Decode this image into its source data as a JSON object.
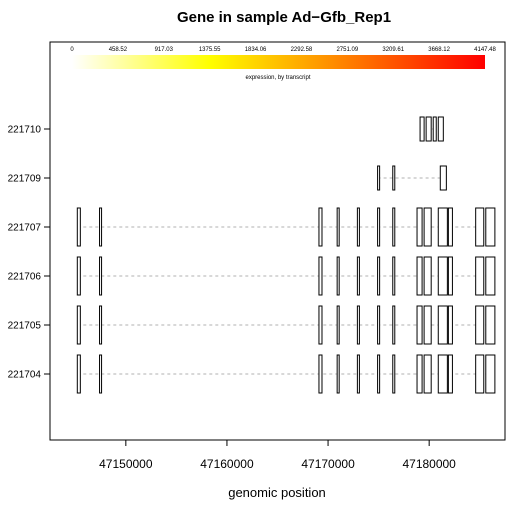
{
  "chart_data": {
    "type": "gene-structure",
    "title": "Gene in sample Ad−Gfb_Rep1",
    "xlabel": "genomic position",
    "xlim": [
      47142500,
      47187500
    ],
    "x_ticks": [
      47150000,
      47160000,
      47170000,
      47180000
    ],
    "x_tick_labels": [
      "47150000",
      "47160000",
      "47170000",
      "47180000"
    ],
    "legend": {
      "caption": "expression, by transcript",
      "min": 0,
      "max": 4147.48,
      "colors": [
        "#ffffff",
        "#ffff00",
        "#ff7f00",
        "#ff0000"
      ],
      "tick_labels": [
        "0",
        "458.52",
        "917.03",
        "1375.55",
        "1834.06",
        "2292.58",
        "2751.09",
        "3209.61",
        "3668.12",
        "4147.48"
      ]
    },
    "transcripts": [
      {
        "name": "221704",
        "start": 47145200,
        "end": 47186500,
        "exons": [
          [
            47145200,
            47145500
          ],
          [
            47147400,
            47147600
          ],
          [
            47169100,
            47169400
          ],
          [
            47170900,
            47171100
          ],
          [
            47172900,
            47173100
          ],
          [
            47174900,
            47175100
          ],
          [
            47176400,
            47176600
          ],
          [
            47178800,
            47179300
          ],
          [
            47179500,
            47180200
          ],
          [
            47180900,
            47181800
          ],
          [
            47181900,
            47182300
          ],
          [
            47184600,
            47185400
          ],
          [
            47185600,
            47186500
          ]
        ]
      },
      {
        "name": "221705",
        "start": 47145200,
        "end": 47186500,
        "exons": [
          [
            47145200,
            47145500
          ],
          [
            47147400,
            47147600
          ],
          [
            47169100,
            47169400
          ],
          [
            47170900,
            47171100
          ],
          [
            47172900,
            47173100
          ],
          [
            47174900,
            47175100
          ],
          [
            47176400,
            47176600
          ],
          [
            47178800,
            47179300
          ],
          [
            47179500,
            47180200
          ],
          [
            47180900,
            47181800
          ],
          [
            47181900,
            47182300
          ],
          [
            47184600,
            47185400
          ],
          [
            47185600,
            47186500
          ]
        ]
      },
      {
        "name": "221706",
        "start": 47145200,
        "end": 47186500,
        "exons": [
          [
            47145200,
            47145500
          ],
          [
            47147400,
            47147600
          ],
          [
            47169100,
            47169400
          ],
          [
            47170900,
            47171100
          ],
          [
            47172900,
            47173100
          ],
          [
            47174900,
            47175100
          ],
          [
            47176400,
            47176600
          ],
          [
            47178800,
            47179300
          ],
          [
            47179500,
            47180200
          ],
          [
            47180900,
            47181800
          ],
          [
            47181900,
            47182300
          ],
          [
            47184600,
            47185400
          ],
          [
            47185600,
            47186500
          ]
        ]
      },
      {
        "name": "221707",
        "start": 47145200,
        "end": 47186500,
        "exons": [
          [
            47145200,
            47145500
          ],
          [
            47147400,
            47147600
          ],
          [
            47169100,
            47169400
          ],
          [
            47170900,
            47171100
          ],
          [
            47172900,
            47173100
          ],
          [
            47174900,
            47175100
          ],
          [
            47176400,
            47176600
          ],
          [
            47178800,
            47179300
          ],
          [
            47179500,
            47180200
          ],
          [
            47180900,
            47181800
          ],
          [
            47181900,
            47182300
          ],
          [
            47184600,
            47185400
          ],
          [
            47185600,
            47186500
          ]
        ]
      },
      {
        "name": "221709",
        "start": 47174900,
        "end": 47181700,
        "exons": [
          [
            47174900,
            47175100
          ],
          [
            47176400,
            47176600
          ],
          [
            47181100,
            47181700
          ]
        ]
      },
      {
        "name": "221710",
        "start": 47179100,
        "end": 47181400,
        "exons": [
          [
            47179100,
            47179500
          ],
          [
            47179700,
            47180200
          ],
          [
            47180400,
            47180700
          ],
          [
            47180900,
            47181400
          ]
        ]
      }
    ]
  }
}
